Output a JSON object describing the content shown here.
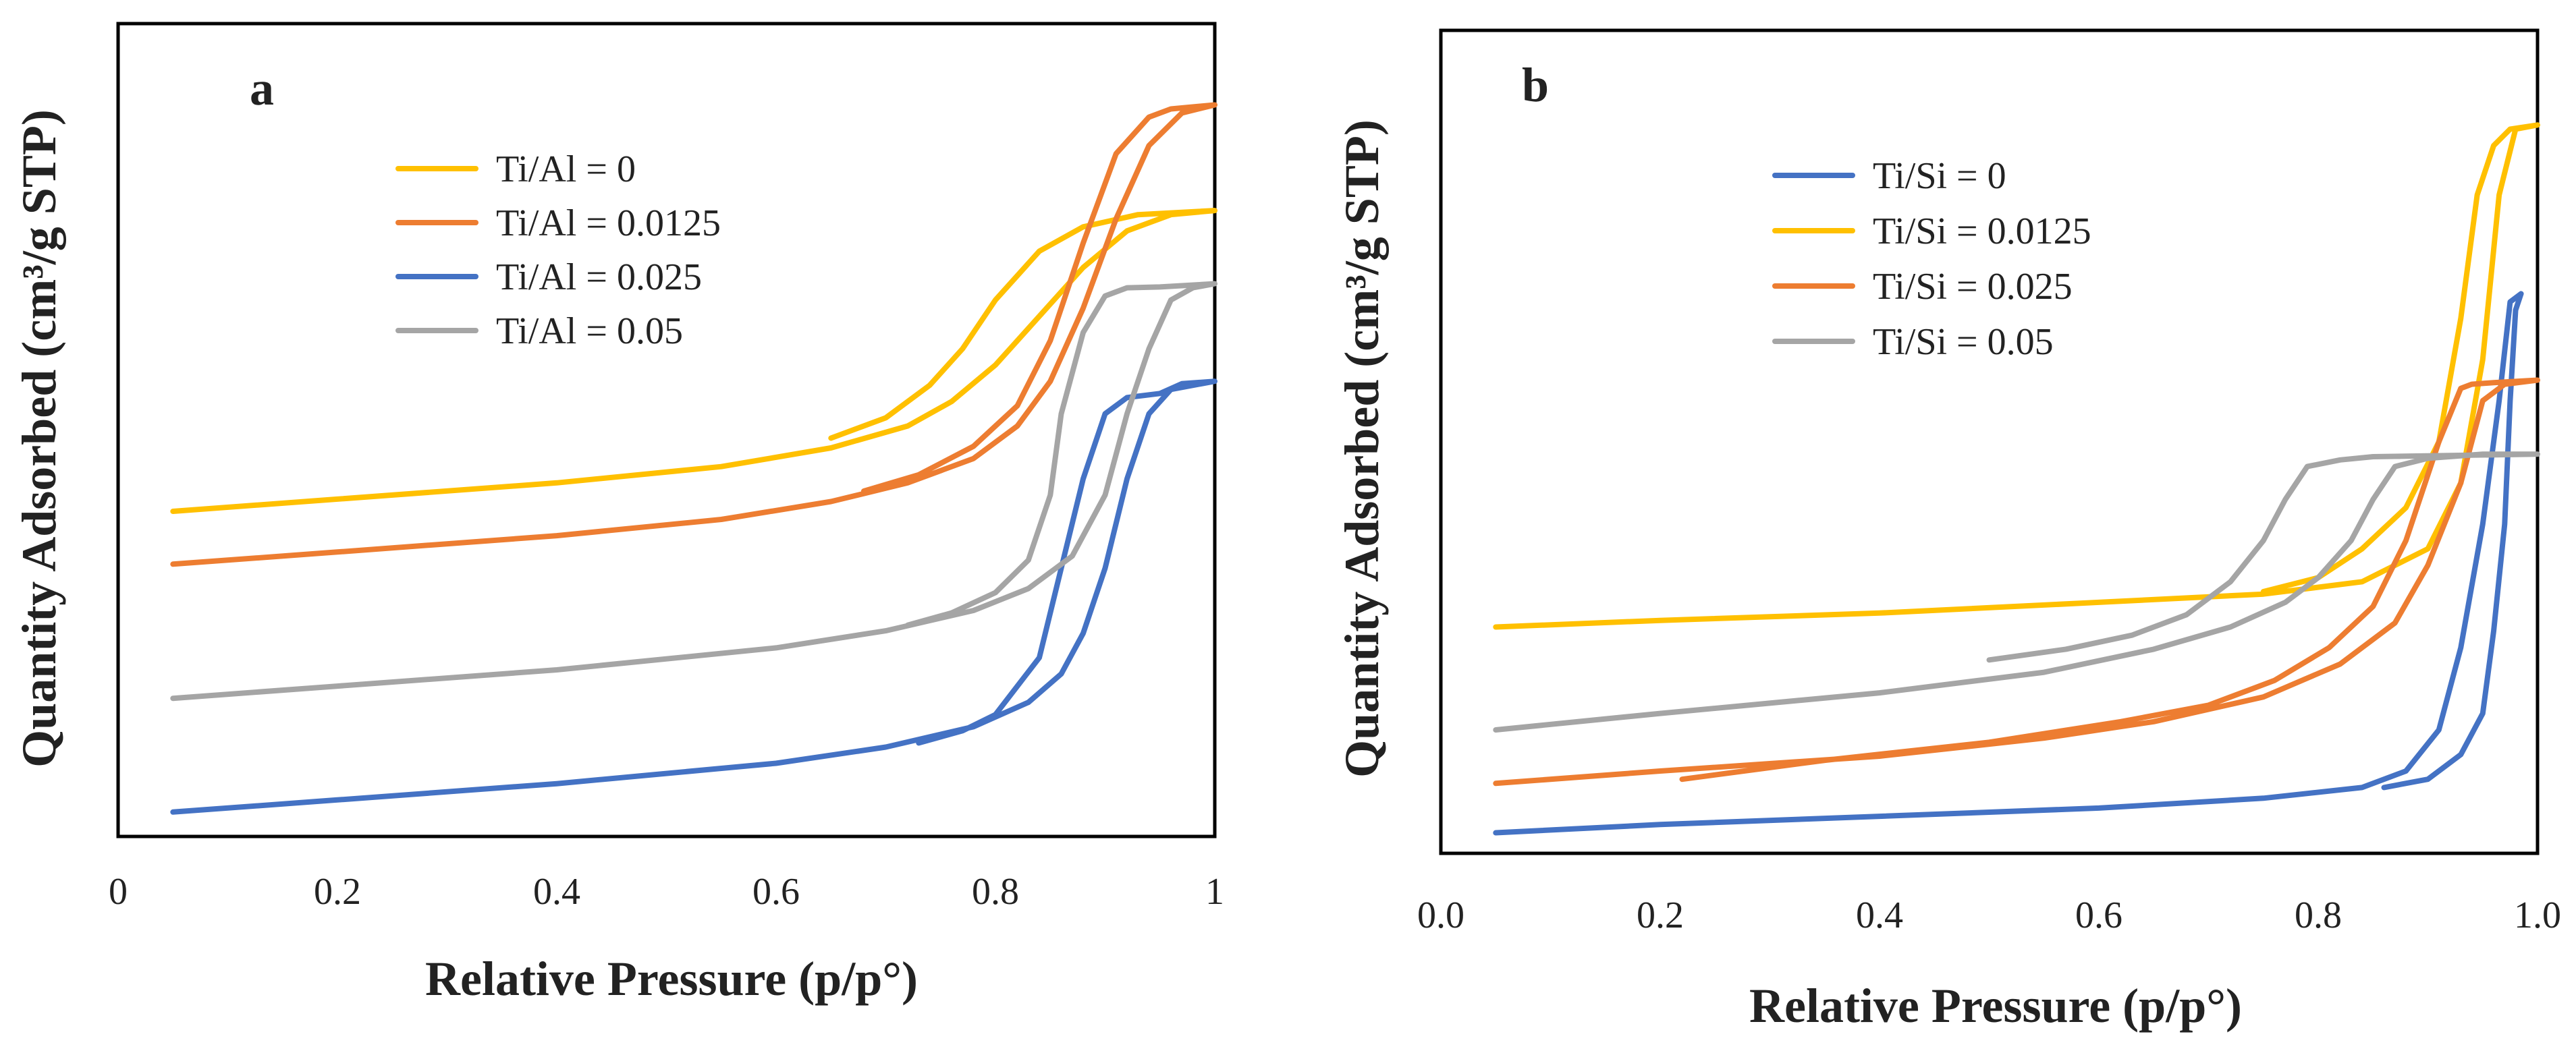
{
  "chart_data": [
    {
      "id": "a",
      "type": "line",
      "panel_label": "a",
      "xlabel": "Relative Pressure (p/p°)",
      "ylabel": "Quantity Adsorbed (cm³/g STP)",
      "xlim": [
        0,
        1
      ],
      "ylim": [
        0,
        1
      ],
      "xticks": [
        0,
        0.2,
        0.4,
        0.6,
        0.8,
        1
      ],
      "xtick_labels": [
        "0",
        "0.2",
        "0.4",
        "0.6",
        "0.8",
        "1"
      ],
      "legend_position": "top-left",
      "series": [
        {
          "name": "Ti/Al = 0",
          "color": "#FFC000",
          "adsorption": [
            [
              0.05,
              0.4
            ],
            [
              0.2,
              0.415
            ],
            [
              0.4,
              0.435
            ],
            [
              0.55,
              0.455
            ],
            [
              0.65,
              0.478
            ],
            [
              0.72,
              0.505
            ],
            [
              0.76,
              0.535
            ],
            [
              0.8,
              0.58
            ],
            [
              0.84,
              0.64
            ],
            [
              0.88,
              0.7
            ],
            [
              0.92,
              0.745
            ],
            [
              0.96,
              0.765
            ],
            [
              1.0,
              0.77
            ]
          ],
          "desorption": [
            [
              1.0,
              0.77
            ],
            [
              0.93,
              0.765
            ],
            [
              0.88,
              0.75
            ],
            [
              0.84,
              0.72
            ],
            [
              0.8,
              0.66
            ],
            [
              0.77,
              0.6
            ],
            [
              0.74,
              0.555
            ],
            [
              0.7,
              0.515
            ],
            [
              0.65,
              0.49
            ]
          ]
        },
        {
          "name": "Ti/Al = 0.0125",
          "color": "#ED7D31",
          "adsorption": [
            [
              0.05,
              0.335
            ],
            [
              0.2,
              0.35
            ],
            [
              0.4,
              0.37
            ],
            [
              0.55,
              0.39
            ],
            [
              0.65,
              0.412
            ],
            [
              0.72,
              0.435
            ],
            [
              0.78,
              0.465
            ],
            [
              0.82,
              0.505
            ],
            [
              0.85,
              0.56
            ],
            [
              0.88,
              0.65
            ],
            [
              0.91,
              0.76
            ],
            [
              0.94,
              0.85
            ],
            [
              0.97,
              0.89
            ],
            [
              1.0,
              0.9
            ]
          ],
          "desorption": [
            [
              1.0,
              0.9
            ],
            [
              0.96,
              0.895
            ],
            [
              0.94,
              0.885
            ],
            [
              0.91,
              0.84
            ],
            [
              0.88,
              0.73
            ],
            [
              0.85,
              0.61
            ],
            [
              0.82,
              0.53
            ],
            [
              0.78,
              0.48
            ],
            [
              0.73,
              0.445
            ],
            [
              0.68,
              0.425
            ]
          ]
        },
        {
          "name": "Ti/Al = 0.025",
          "color": "#4472C4",
          "adsorption": [
            [
              0.05,
              0.03
            ],
            [
              0.2,
              0.045
            ],
            [
              0.4,
              0.065
            ],
            [
              0.6,
              0.09
            ],
            [
              0.7,
              0.11
            ],
            [
              0.78,
              0.135
            ],
            [
              0.83,
              0.165
            ],
            [
              0.86,
              0.2
            ],
            [
              0.88,
              0.25
            ],
            [
              0.9,
              0.33
            ],
            [
              0.92,
              0.44
            ],
            [
              0.94,
              0.52
            ],
            [
              0.96,
              0.55
            ],
            [
              1.0,
              0.56
            ]
          ],
          "desorption": [
            [
              1.0,
              0.56
            ],
            [
              0.97,
              0.557
            ],
            [
              0.95,
              0.545
            ],
            [
              0.92,
              0.54
            ],
            [
              0.9,
              0.52
            ],
            [
              0.88,
              0.44
            ],
            [
              0.86,
              0.33
            ],
            [
              0.84,
              0.22
            ],
            [
              0.8,
              0.15
            ],
            [
              0.77,
              0.13
            ],
            [
              0.73,
              0.115
            ]
          ]
        },
        {
          "name": "Ti/Al = 0.05",
          "color": "#A5A5A5",
          "adsorption": [
            [
              0.05,
              0.17
            ],
            [
              0.2,
              0.185
            ],
            [
              0.4,
              0.205
            ],
            [
              0.6,
              0.232
            ],
            [
              0.7,
              0.253
            ],
            [
              0.78,
              0.278
            ],
            [
              0.83,
              0.305
            ],
            [
              0.87,
              0.345
            ],
            [
              0.9,
              0.42
            ],
            [
              0.92,
              0.52
            ],
            [
              0.94,
              0.6
            ],
            [
              0.96,
              0.66
            ],
            [
              0.98,
              0.675
            ],
            [
              1.0,
              0.68
            ]
          ],
          "desorption": [
            [
              1.0,
              0.68
            ],
            [
              0.95,
              0.676
            ],
            [
              0.92,
              0.675
            ],
            [
              0.9,
              0.665
            ],
            [
              0.88,
              0.62
            ],
            [
              0.86,
              0.52
            ],
            [
              0.85,
              0.42
            ],
            [
              0.83,
              0.34
            ],
            [
              0.8,
              0.3
            ],
            [
              0.76,
              0.275
            ],
            [
              0.72,
              0.26
            ]
          ]
        }
      ]
    },
    {
      "id": "b",
      "type": "line",
      "panel_label": "b",
      "xlabel": "Relative Pressure (p/p°)",
      "ylabel": "Quantity Adsorbed (cm³/g STP)",
      "xlim": [
        0,
        1
      ],
      "ylim": [
        0,
        1
      ],
      "xticks": [
        0,
        0.2,
        0.4,
        0.6,
        0.8,
        1.0
      ],
      "xtick_labels": [
        "0.0",
        "0.2",
        "0.4",
        "0.6",
        "0.8",
        "1.0"
      ],
      "legend_position": "top-center",
      "series": [
        {
          "name": "Ti/Si = 0",
          "color": "#4472C4",
          "adsorption": [
            [
              0.05,
              0.025
            ],
            [
              0.2,
              0.035
            ],
            [
              0.4,
              0.045
            ],
            [
              0.6,
              0.055
            ],
            [
              0.75,
              0.067
            ],
            [
              0.84,
              0.08
            ],
            [
              0.88,
              0.1
            ],
            [
              0.91,
              0.15
            ],
            [
              0.93,
              0.25
            ],
            [
              0.95,
              0.4
            ],
            [
              0.965,
              0.55
            ],
            [
              0.975,
              0.67
            ],
            [
              0.985,
              0.68
            ]
          ],
          "desorption": [
            [
              0.985,
              0.68
            ],
            [
              0.98,
              0.66
            ],
            [
              0.975,
              0.55
            ],
            [
              0.97,
              0.4
            ],
            [
              0.96,
              0.27
            ],
            [
              0.95,
              0.17
            ],
            [
              0.93,
              0.12
            ],
            [
              0.9,
              0.09
            ],
            [
              0.86,
              0.08
            ]
          ]
        },
        {
          "name": "Ti/Si = 0.0125",
          "color": "#FFC000",
          "adsorption": [
            [
              0.05,
              0.275
            ],
            [
              0.2,
              0.283
            ],
            [
              0.4,
              0.292
            ],
            [
              0.6,
              0.305
            ],
            [
              0.75,
              0.315
            ],
            [
              0.84,
              0.33
            ],
            [
              0.9,
              0.37
            ],
            [
              0.93,
              0.45
            ],
            [
              0.95,
              0.6
            ],
            [
              0.965,
              0.8
            ],
            [
              0.98,
              0.88
            ],
            [
              1.0,
              0.885
            ]
          ],
          "desorption": [
            [
              1.0,
              0.885
            ],
            [
              0.975,
              0.88
            ],
            [
              0.96,
              0.86
            ],
            [
              0.945,
              0.8
            ],
            [
              0.93,
              0.65
            ],
            [
              0.91,
              0.5
            ],
            [
              0.88,
              0.42
            ],
            [
              0.84,
              0.37
            ],
            [
              0.8,
              0.335
            ],
            [
              0.75,
              0.318
            ]
          ]
        },
        {
          "name": "Ti/Si = 0.025",
          "color": "#ED7D31",
          "adsorption": [
            [
              0.05,
              0.085
            ],
            [
              0.2,
              0.1
            ],
            [
              0.4,
              0.118
            ],
            [
              0.55,
              0.14
            ],
            [
              0.65,
              0.16
            ],
            [
              0.75,
              0.19
            ],
            [
              0.82,
              0.23
            ],
            [
              0.87,
              0.28
            ],
            [
              0.9,
              0.35
            ],
            [
              0.93,
              0.45
            ],
            [
              0.95,
              0.55
            ],
            [
              0.97,
              0.57
            ],
            [
              1.0,
              0.575
            ]
          ],
          "desorption": [
            [
              1.0,
              0.575
            ],
            [
              0.96,
              0.572
            ],
            [
              0.94,
              0.57
            ],
            [
              0.93,
              0.565
            ],
            [
              0.91,
              0.5
            ],
            [
              0.88,
              0.38
            ],
            [
              0.85,
              0.3
            ],
            [
              0.81,
              0.25
            ],
            [
              0.76,
              0.21
            ],
            [
              0.7,
              0.18
            ],
            [
              0.62,
              0.16
            ],
            [
              0.5,
              0.135
            ],
            [
              0.35,
              0.113
            ],
            [
              0.22,
              0.09
            ]
          ]
        },
        {
          "name": "Ti/Si = 0.05",
          "color": "#A5A5A5",
          "adsorption": [
            [
              0.05,
              0.15
            ],
            [
              0.2,
              0.17
            ],
            [
              0.4,
              0.195
            ],
            [
              0.55,
              0.22
            ],
            [
              0.65,
              0.248
            ],
            [
              0.72,
              0.275
            ],
            [
              0.77,
              0.305
            ],
            [
              0.8,
              0.335
            ],
            [
              0.83,
              0.38
            ],
            [
              0.85,
              0.43
            ],
            [
              0.87,
              0.47
            ],
            [
              0.9,
              0.48
            ],
            [
              0.95,
              0.485
            ],
            [
              1.0,
              0.485
            ]
          ],
          "desorption": [
            [
              1.0,
              0.485
            ],
            [
              0.9,
              0.483
            ],
            [
              0.85,
              0.482
            ],
            [
              0.82,
              0.478
            ],
            [
              0.79,
              0.47
            ],
            [
              0.77,
              0.43
            ],
            [
              0.75,
              0.38
            ],
            [
              0.72,
              0.33
            ],
            [
              0.68,
              0.29
            ],
            [
              0.63,
              0.265
            ],
            [
              0.57,
              0.248
            ],
            [
              0.5,
              0.235
            ]
          ]
        }
      ]
    }
  ]
}
